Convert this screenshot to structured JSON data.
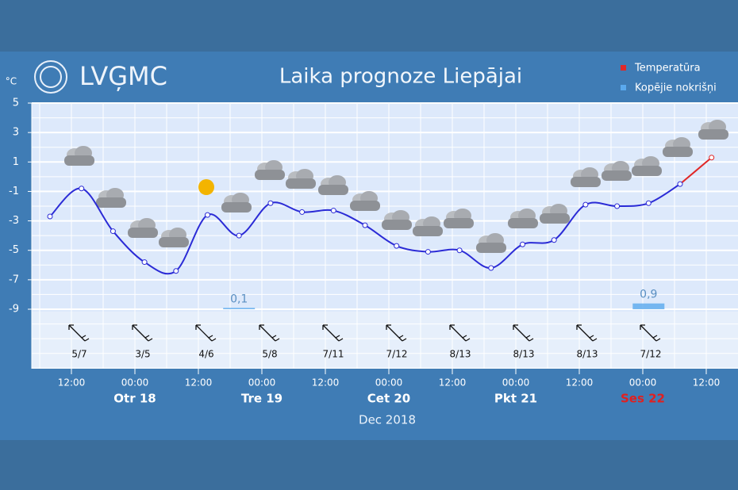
{
  "chart_data": {
    "type": "line",
    "logo": "LVĢMC",
    "title": "Laika prognoze Liepājai",
    "unit": "°C",
    "series": [
      {
        "name": "Temperatūra",
        "color": "#e02828",
        "values": [
          -2.7,
          -0.8,
          -3.7,
          -5.8,
          -6.4,
          -2.6,
          -4,
          -1.8,
          -2.4,
          -2.3,
          -3.3,
          -4.7,
          -5.1,
          -5,
          -6.2,
          -4.6,
          -4.3,
          -1.9,
          -2,
          -1.8,
          -0.5,
          1.3
        ]
      }
    ],
    "line_color": "#2b2bd6",
    "precipitation": {
      "name": "Kopējie nokrišņi",
      "color": "#5aa9ee",
      "values": [
        null,
        null,
        null,
        null,
        null,
        null,
        0.1,
        null,
        null,
        null,
        null,
        null,
        null,
        null,
        null,
        null,
        null,
        null,
        null,
        0.9,
        null,
        null
      ],
      "value_labels": [
        null,
        null,
        null,
        null,
        null,
        null,
        "0,1",
        null,
        null,
        null,
        null,
        null,
        null,
        null,
        null,
        null,
        null,
        null,
        null,
        "0,9",
        null,
        null
      ]
    },
    "ylim": [
      -9,
      5
    ],
    "yticks": [
      5,
      3,
      1,
      -1,
      -3,
      -5,
      -7,
      -9
    ],
    "grid": true,
    "wind": [
      "5/7",
      "3/5",
      "4/6",
      "5/8",
      "7/11",
      "7/12",
      "8/13",
      "8/13",
      "8/13",
      "7/12"
    ],
    "time_labels": [
      "12:00",
      "00:00",
      "12:00",
      "00:00",
      "12:00",
      "00:00",
      "12:00",
      "00:00",
      "12:00",
      "00:00",
      "12:00"
    ],
    "days": [
      "Otr 18",
      "Tre 19",
      "Cet 20",
      "Pkt 21",
      "Ses 22"
    ],
    "month": "Dec 2018"
  }
}
